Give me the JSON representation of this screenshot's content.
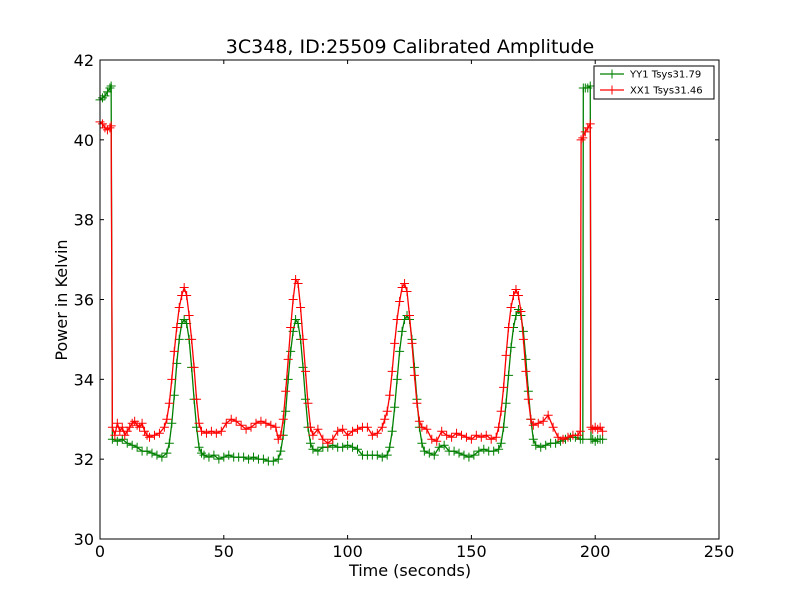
{
  "chart_data": {
    "type": "line",
    "title": "3C348, ID:25509 Calibrated Amplitude",
    "xlabel": "Time (seconds)",
    "ylabel": "Power in Kelvin",
    "xlim": [
      0,
      250
    ],
    "ylim": [
      30,
      42
    ],
    "x_ticks": [
      "0",
      "50",
      "100",
      "150",
      "200",
      "250"
    ],
    "y_ticks": [
      "30",
      "32",
      "34",
      "36",
      "38",
      "40",
      "42"
    ],
    "x_tick_values": [
      0,
      50,
      100,
      150,
      200,
      250
    ],
    "y_tick_values": [
      30,
      32,
      34,
      36,
      38,
      40,
      42
    ],
    "grid": false,
    "legend_position": "top-right",
    "marker": "plus",
    "series": [
      {
        "name": "YY1 Tsys31.79",
        "color": "#008000",
        "points": [
          [
            0,
            41.0
          ],
          [
            1,
            41.05
          ],
          [
            2,
            41.1
          ],
          [
            3,
            41.2
          ],
          [
            4,
            41.3
          ],
          [
            4.5,
            41.35
          ],
          [
            5,
            32.5
          ],
          [
            7,
            32.45
          ],
          [
            9,
            32.5
          ],
          [
            11,
            32.4
          ],
          [
            13,
            32.35
          ],
          [
            15,
            32.3
          ],
          [
            17,
            32.2
          ],
          [
            19,
            32.2
          ],
          [
            21,
            32.15
          ],
          [
            23,
            32.1
          ],
          [
            25,
            32.05
          ],
          [
            27,
            32.15
          ],
          [
            28,
            32.4
          ],
          [
            29,
            32.9
          ],
          [
            30,
            33.6
          ],
          [
            31,
            34.4
          ],
          [
            32,
            35.0
          ],
          [
            33,
            35.4
          ],
          [
            34,
            35.5
          ],
          [
            35,
            35.4
          ],
          [
            36,
            35.0
          ],
          [
            37,
            34.3
          ],
          [
            38,
            33.5
          ],
          [
            39,
            32.8
          ],
          [
            40,
            32.3
          ],
          [
            41,
            32.15
          ],
          [
            42,
            32.1
          ],
          [
            44,
            32.05
          ],
          [
            46,
            32.1
          ],
          [
            48,
            32.0
          ],
          [
            50,
            32.05
          ],
          [
            52,
            32.1
          ],
          [
            54,
            32.05
          ],
          [
            56,
            32.05
          ],
          [
            58,
            32.05
          ],
          [
            60,
            32.0
          ],
          [
            62,
            32.05
          ],
          [
            64,
            32.0
          ],
          [
            66,
            32.0
          ],
          [
            68,
            31.95
          ],
          [
            70,
            31.95
          ],
          [
            72,
            32.0
          ],
          [
            73,
            32.2
          ],
          [
            74,
            32.6
          ],
          [
            75,
            33.2
          ],
          [
            76,
            34.0
          ],
          [
            77,
            34.7
          ],
          [
            78,
            35.2
          ],
          [
            79,
            35.5
          ],
          [
            80,
            35.4
          ],
          [
            81,
            35.0
          ],
          [
            82,
            34.3
          ],
          [
            83,
            33.5
          ],
          [
            84,
            32.8
          ],
          [
            85,
            32.4
          ],
          [
            86,
            32.25
          ],
          [
            88,
            32.2
          ],
          [
            90,
            32.3
          ],
          [
            92,
            32.3
          ],
          [
            94,
            32.35
          ],
          [
            96,
            32.3
          ],
          [
            98,
            32.3
          ],
          [
            100,
            32.35
          ],
          [
            102,
            32.3
          ],
          [
            104,
            32.25
          ],
          [
            106,
            32.1
          ],
          [
            108,
            32.1
          ],
          [
            110,
            32.1
          ],
          [
            112,
            32.1
          ],
          [
            114,
            32.05
          ],
          [
            116,
            32.1
          ],
          [
            117,
            32.3
          ],
          [
            118,
            32.7
          ],
          [
            119,
            33.3
          ],
          [
            120,
            34.0
          ],
          [
            121,
            34.7
          ],
          [
            122,
            35.2
          ],
          [
            123,
            35.5
          ],
          [
            124,
            35.6
          ],
          [
            125,
            35.5
          ],
          [
            126,
            35.0
          ],
          [
            127,
            34.3
          ],
          [
            128,
            33.5
          ],
          [
            129,
            32.8
          ],
          [
            130,
            32.4
          ],
          [
            131,
            32.2
          ],
          [
            133,
            32.15
          ],
          [
            135,
            32.1
          ],
          [
            137,
            32.3
          ],
          [
            139,
            32.35
          ],
          [
            141,
            32.2
          ],
          [
            143,
            32.2
          ],
          [
            145,
            32.15
          ],
          [
            147,
            32.1
          ],
          [
            149,
            32.05
          ],
          [
            151,
            32.1
          ],
          [
            153,
            32.2
          ],
          [
            155,
            32.25
          ],
          [
            157,
            32.2
          ],
          [
            159,
            32.2
          ],
          [
            161,
            32.25
          ],
          [
            162,
            32.4
          ],
          [
            163,
            32.8
          ],
          [
            164,
            33.4
          ],
          [
            165,
            34.1
          ],
          [
            166,
            34.8
          ],
          [
            167,
            35.3
          ],
          [
            168,
            35.6
          ],
          [
            169,
            35.75
          ],
          [
            170,
            35.6
          ],
          [
            171,
            35.2
          ],
          [
            172,
            34.5
          ],
          [
            173,
            33.7
          ],
          [
            174,
            33.0
          ],
          [
            175,
            32.5
          ],
          [
            176,
            32.35
          ],
          [
            178,
            32.3
          ],
          [
            180,
            32.35
          ],
          [
            182,
            32.4
          ],
          [
            184,
            32.4
          ],
          [
            186,
            32.45
          ],
          [
            188,
            32.5
          ],
          [
            190,
            32.55
          ],
          [
            192,
            32.55
          ],
          [
            194,
            32.5
          ],
          [
            195,
            32.5
          ],
          [
            195.2,
            41.3
          ],
          [
            196,
            41.3
          ],
          [
            197,
            41.3
          ],
          [
            198,
            41.35
          ],
          [
            198.3,
            32.5
          ],
          [
            199,
            32.5
          ],
          [
            200,
            32.45
          ],
          [
            201,
            32.5
          ],
          [
            202,
            32.5
          ],
          [
            203,
            32.5
          ]
        ]
      },
      {
        "name": "XX1 Tsys31.46",
        "color": "#ff0000",
        "points": [
          [
            0,
            40.45
          ],
          [
            1,
            40.4
          ],
          [
            2,
            40.3
          ],
          [
            3,
            40.25
          ],
          [
            4,
            40.3
          ],
          [
            4.5,
            40.35
          ],
          [
            5,
            32.8
          ],
          [
            6,
            32.6
          ],
          [
            7,
            32.9
          ],
          [
            8,
            32.7
          ],
          [
            9,
            32.8
          ],
          [
            10,
            32.6
          ],
          [
            11,
            32.7
          ],
          [
            12,
            32.8
          ],
          [
            13,
            32.9
          ],
          [
            14,
            32.95
          ],
          [
            15,
            32.85
          ],
          [
            16,
            32.8
          ],
          [
            17,
            32.9
          ],
          [
            18,
            32.7
          ],
          [
            19,
            32.6
          ],
          [
            20,
            32.55
          ],
          [
            22,
            32.6
          ],
          [
            24,
            32.65
          ],
          [
            26,
            32.8
          ],
          [
            27,
            33.0
          ],
          [
            28,
            33.4
          ],
          [
            29,
            34.0
          ],
          [
            30,
            34.7
          ],
          [
            31,
            35.3
          ],
          [
            32,
            35.8
          ],
          [
            33,
            36.1
          ],
          [
            34,
            36.3
          ],
          [
            35,
            36.1
          ],
          [
            36,
            35.6
          ],
          [
            37,
            35.0
          ],
          [
            38,
            34.3
          ],
          [
            39,
            33.5
          ],
          [
            40,
            32.9
          ],
          [
            41,
            32.7
          ],
          [
            43,
            32.65
          ],
          [
            45,
            32.7
          ],
          [
            47,
            32.65
          ],
          [
            49,
            32.7
          ],
          [
            51,
            32.9
          ],
          [
            53,
            33.0
          ],
          [
            55,
            32.95
          ],
          [
            57,
            32.85
          ],
          [
            59,
            32.75
          ],
          [
            61,
            32.8
          ],
          [
            63,
            32.9
          ],
          [
            65,
            32.95
          ],
          [
            67,
            32.9
          ],
          [
            69,
            32.85
          ],
          [
            71,
            32.8
          ],
          [
            72,
            32.5
          ],
          [
            73,
            32.6
          ],
          [
            74,
            33.0
          ],
          [
            75,
            33.7
          ],
          [
            76,
            34.5
          ],
          [
            77,
            35.3
          ],
          [
            78,
            36.0
          ],
          [
            79,
            36.5
          ],
          [
            80,
            36.4
          ],
          [
            81,
            35.8
          ],
          [
            82,
            35.0
          ],
          [
            83,
            34.2
          ],
          [
            84,
            33.4
          ],
          [
            85,
            32.8
          ],
          [
            86,
            32.6
          ],
          [
            88,
            32.75
          ],
          [
            90,
            32.5
          ],
          [
            92,
            32.4
          ],
          [
            94,
            32.5
          ],
          [
            96,
            32.7
          ],
          [
            98,
            32.75
          ],
          [
            100,
            32.6
          ],
          [
            102,
            32.7
          ],
          [
            104,
            32.75
          ],
          [
            106,
            32.8
          ],
          [
            108,
            32.8
          ],
          [
            110,
            32.6
          ],
          [
            112,
            32.65
          ],
          [
            114,
            32.8
          ],
          [
            115,
            33.0
          ],
          [
            116,
            33.2
          ],
          [
            117,
            33.6
          ],
          [
            118,
            34.2
          ],
          [
            119,
            34.9
          ],
          [
            120,
            35.5
          ],
          [
            121,
            35.95
          ],
          [
            122,
            36.3
          ],
          [
            123,
            36.4
          ],
          [
            124,
            36.2
          ],
          [
            125,
            35.6
          ],
          [
            126,
            34.9
          ],
          [
            127,
            34.1
          ],
          [
            128,
            33.4
          ],
          [
            129,
            32.95
          ],
          [
            130,
            32.8
          ],
          [
            132,
            32.75
          ],
          [
            134,
            32.5
          ],
          [
            136,
            32.45
          ],
          [
            138,
            32.7
          ],
          [
            140,
            32.6
          ],
          [
            142,
            32.55
          ],
          [
            144,
            32.65
          ],
          [
            146,
            32.6
          ],
          [
            148,
            32.55
          ],
          [
            150,
            32.5
          ],
          [
            152,
            32.6
          ],
          [
            154,
            32.55
          ],
          [
            156,
            32.6
          ],
          [
            158,
            32.5
          ],
          [
            160,
            32.55
          ],
          [
            161,
            32.8
          ],
          [
            162,
            33.2
          ],
          [
            163,
            33.8
          ],
          [
            164,
            34.6
          ],
          [
            165,
            35.3
          ],
          [
            166,
            35.8
          ],
          [
            167,
            36.1
          ],
          [
            168,
            36.25
          ],
          [
            169,
            36.1
          ],
          [
            170,
            35.7
          ],
          [
            171,
            35.0
          ],
          [
            172,
            34.2
          ],
          [
            173,
            33.5
          ],
          [
            174,
            33.0
          ],
          [
            175,
            32.85
          ],
          [
            177,
            32.9
          ],
          [
            179,
            32.95
          ],
          [
            181,
            33.1
          ],
          [
            183,
            32.8
          ],
          [
            185,
            32.55
          ],
          [
            187,
            32.5
          ],
          [
            189,
            32.55
          ],
          [
            191,
            32.6
          ],
          [
            193,
            32.6
          ],
          [
            194,
            32.7
          ],
          [
            194.3,
            40.0
          ],
          [
            195,
            40.05
          ],
          [
            196,
            40.2
          ],
          [
            197,
            40.3
          ],
          [
            198,
            40.4
          ],
          [
            198.3,
            32.8
          ],
          [
            199,
            32.75
          ],
          [
            200,
            32.8
          ],
          [
            201,
            32.75
          ],
          [
            202,
            32.8
          ],
          [
            203,
            32.7
          ]
        ]
      }
    ]
  }
}
